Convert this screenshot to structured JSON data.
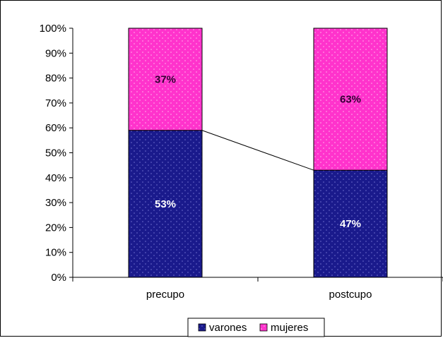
{
  "chart_data": {
    "type": "bar",
    "stacked": true,
    "normalized": true,
    "categories": [
      "precupo",
      "postcupo"
    ],
    "series": [
      {
        "name": "varones",
        "values": [
          59,
          43
        ],
        "labels": [
          "53%",
          "47%"
        ],
        "color": "#1a1a8c",
        "label_color": "#ffffff"
      },
      {
        "name": "mujeres",
        "values": [
          41,
          57
        ],
        "labels": [
          "37%",
          "63%"
        ],
        "color": "#ff33cc",
        "label_color": "#330033"
      }
    ],
    "yticks": [
      "0%",
      "10%",
      "20%",
      "30%",
      "40%",
      "50%",
      "60%",
      "70%",
      "80%",
      "90%",
      "100%"
    ],
    "ylim": [
      0,
      100
    ],
    "series_lines": true,
    "legend_position": "bottom",
    "grid": false
  }
}
